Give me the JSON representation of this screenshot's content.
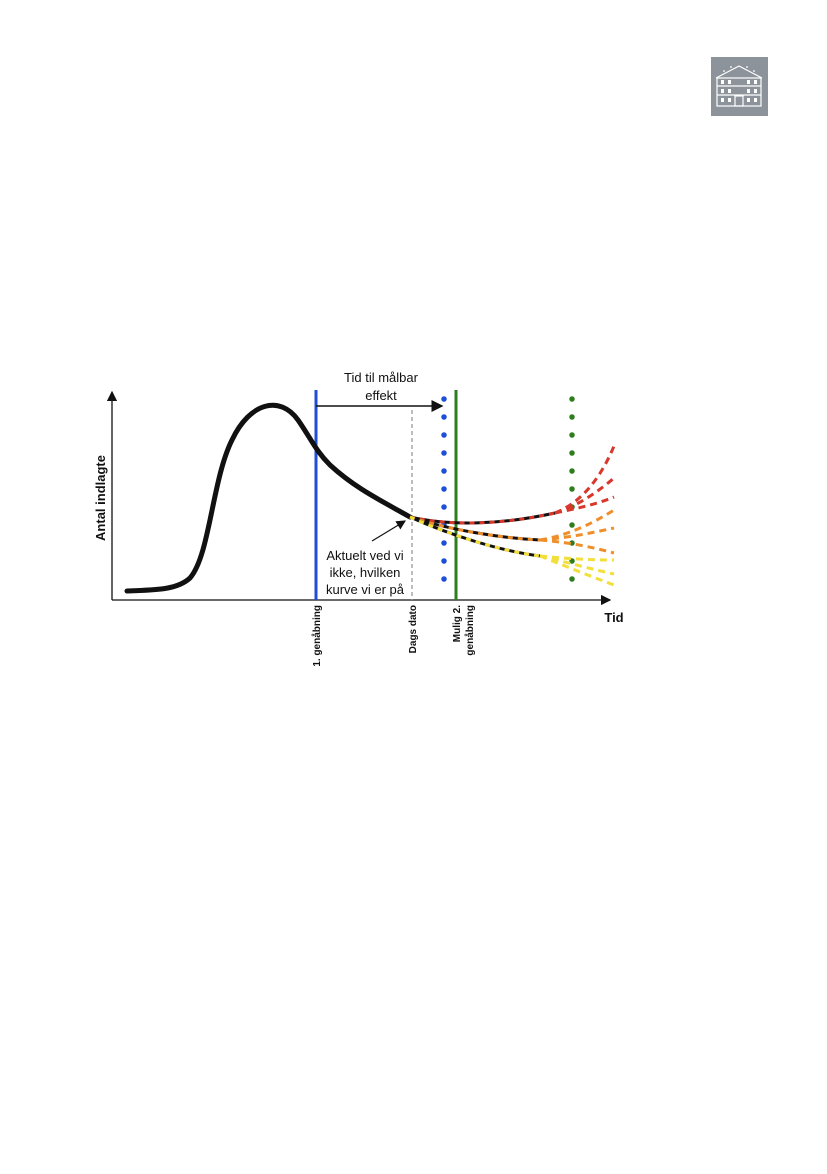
{
  "diagram": {
    "y_axis_label": "Antal indlagte",
    "x_axis_label": "Tid",
    "arrow_label": [
      "Tid til målbar",
      "effekt"
    ],
    "annotation": [
      "Aktuelt ved vi",
      "ikke, hvilken",
      "kurve vi er på"
    ],
    "markers": [
      {
        "label": [
          "1. genåbning"
        ]
      },
      {
        "label": [
          "Dags dato"
        ]
      },
      {
        "label": [
          "Mulig 2.",
          "genåbning"
        ]
      }
    ]
  }
}
